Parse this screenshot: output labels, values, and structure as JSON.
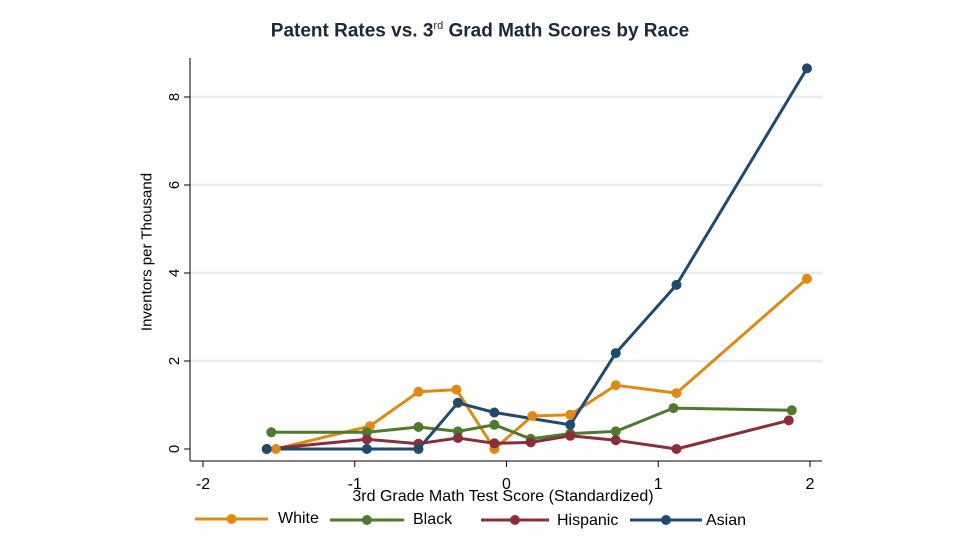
{
  "chart_data": {
    "type": "line",
    "title_pre": "Patent Rates vs. 3",
    "title_sup": "rd",
    "title_post": " Grad Math Scores by Race",
    "xlabel": "3rd Grade Math Test Score (Standardized)",
    "ylabel": "Inventors per Thousand",
    "xlim": [
      -2,
      2
    ],
    "ylim": [
      0,
      8
    ],
    "xticks": [
      -2,
      -1,
      0,
      1,
      2
    ],
    "yticks": [
      0,
      2,
      4,
      6,
      8
    ],
    "grid": true,
    "legend_position": "bottom",
    "series": [
      {
        "name": "White",
        "color": "#e08a14",
        "x": [
          -1.52,
          -0.9,
          -0.58,
          -0.33,
          -0.08,
          0.17,
          0.42,
          0.72,
          1.12,
          1.98
        ],
        "y": [
          0.0,
          0.52,
          1.3,
          1.35,
          0.0,
          0.75,
          0.78,
          1.45,
          1.27,
          3.87
        ]
      },
      {
        "name": "Black",
        "color": "#4e7a2e",
        "x": [
          -1.55,
          -0.92,
          -0.58,
          -0.32,
          -0.08,
          0.16,
          0.42,
          0.72,
          1.1,
          1.88
        ],
        "y": [
          0.38,
          0.38,
          0.5,
          0.4,
          0.55,
          0.23,
          0.35,
          0.4,
          0.93,
          0.88
        ]
      },
      {
        "name": "Hispanic",
        "color": "#8b2e3c",
        "x": [
          -1.58,
          -0.92,
          -0.58,
          -0.32,
          -0.08,
          0.16,
          0.42,
          0.72,
          1.12,
          1.86
        ],
        "y": [
          0.0,
          0.22,
          0.12,
          0.25,
          0.13,
          0.15,
          0.3,
          0.2,
          0.0,
          0.65
        ]
      },
      {
        "name": "Asian",
        "color": "#1f4a6e",
        "x": [
          -1.58,
          -0.92,
          -0.58,
          -0.32,
          -0.08,
          0.42,
          0.72,
          1.12,
          1.98
        ],
        "y": [
          0.0,
          0.0,
          0.0,
          1.05,
          0.83,
          0.55,
          2.18,
          3.73,
          8.65
        ]
      }
    ]
  }
}
